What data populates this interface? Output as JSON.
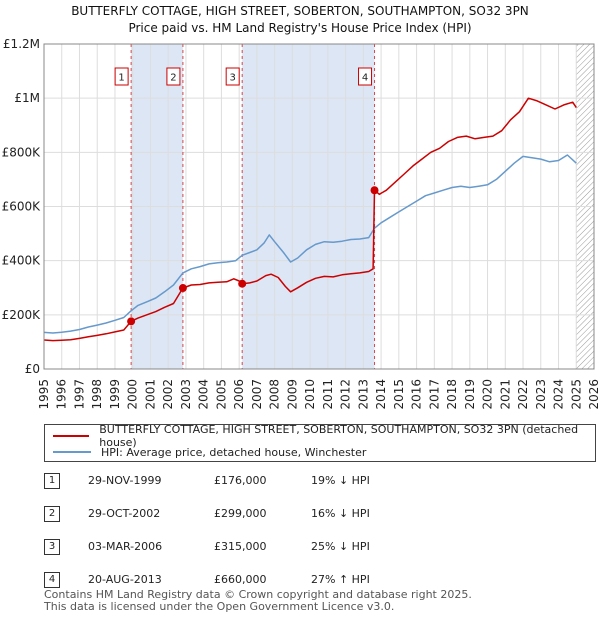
{
  "title": {
    "line1": "BUTTERFLY COTTAGE, HIGH STREET, SOBERTON, SOUTHAMPTON, SO32 3PN",
    "line2": "Price paid vs. HM Land Registry's House Price Index (HPI)"
  },
  "colors": {
    "property": "#cc0000",
    "hpi": "#6699cc",
    "band": "#dde6f5",
    "grid": "#dddddd",
    "hatch": "#999999"
  },
  "chart_data": {
    "type": "line",
    "title": "Price paid vs. HM Land Registry's House Price Index (HPI)",
    "xlabel": "",
    "ylabel": "",
    "xlim": [
      1995,
      2026
    ],
    "ylim": [
      0,
      1200000
    ],
    "x_ticks": [
      "1995",
      "1996",
      "1997",
      "1998",
      "1999",
      "2000",
      "2001",
      "2002",
      "2003",
      "2004",
      "2005",
      "2006",
      "2007",
      "2008",
      "2009",
      "2010",
      "2011",
      "2012",
      "2013",
      "2014",
      "2015",
      "2016",
      "2017",
      "2018",
      "2019",
      "2020",
      "2021",
      "2022",
      "2023",
      "2024",
      "2025",
      "2026"
    ],
    "y_ticks": [
      {
        "value": 0,
        "label": "£0"
      },
      {
        "value": 200000,
        "label": "£200K"
      },
      {
        "value": 400000,
        "label": "£400K"
      },
      {
        "value": 600000,
        "label": "£600K"
      },
      {
        "value": 800000,
        "label": "£800K"
      },
      {
        "value": 1000000,
        "label": "£1M"
      },
      {
        "value": 1200000,
        "label": "£1.2M"
      }
    ],
    "grid": true,
    "legend_position": "below",
    "projection_from": 2025.0,
    "shaded_bands": [
      [
        1999.91,
        2002.83
      ],
      [
        2006.17,
        2013.63
      ]
    ],
    "series": [
      {
        "name": "BUTTERFLY COTTAGE, HIGH STREET, SOBERTON, SOUTHAMPTON, SO32 3PN (detached house)",
        "color": "#cc0000",
        "points": [
          [
            1995.0,
            107000
          ],
          [
            1995.5,
            105000
          ],
          [
            1996.0,
            106000
          ],
          [
            1996.5,
            108000
          ],
          [
            1997.0,
            113000
          ],
          [
            1997.5,
            119000
          ],
          [
            1998.0,
            124000
          ],
          [
            1998.5,
            130000
          ],
          [
            1999.0,
            137000
          ],
          [
            1999.5,
            144000
          ],
          [
            1999.91,
            176000
          ],
          [
            2000.3,
            188000
          ],
          [
            2000.8,
            200000
          ],
          [
            2001.3,
            212000
          ],
          [
            2001.8,
            228000
          ],
          [
            2002.3,
            242000
          ],
          [
            2002.83,
            299000
          ],
          [
            2003.3,
            310000
          ],
          [
            2003.8,
            312000
          ],
          [
            2004.3,
            318000
          ],
          [
            2004.8,
            320000
          ],
          [
            2005.3,
            322000
          ],
          [
            2005.7,
            333000
          ],
          [
            2006.0,
            325000
          ],
          [
            2006.17,
            315000
          ],
          [
            2006.6,
            318000
          ],
          [
            2007.0,
            325000
          ],
          [
            2007.5,
            345000
          ],
          [
            2007.8,
            350000
          ],
          [
            2008.2,
            338000
          ],
          [
            2008.6,
            305000
          ],
          [
            2008.9,
            285000
          ],
          [
            2009.3,
            300000
          ],
          [
            2009.8,
            320000
          ],
          [
            2010.3,
            335000
          ],
          [
            2010.8,
            342000
          ],
          [
            2011.3,
            340000
          ],
          [
            2011.8,
            348000
          ],
          [
            2012.3,
            352000
          ],
          [
            2012.8,
            355000
          ],
          [
            2013.3,
            360000
          ],
          [
            2013.55,
            370000
          ],
          [
            2013.63,
            660000
          ],
          [
            2013.9,
            645000
          ],
          [
            2014.3,
            660000
          ],
          [
            2014.8,
            690000
          ],
          [
            2015.3,
            720000
          ],
          [
            2015.8,
            750000
          ],
          [
            2016.3,
            775000
          ],
          [
            2016.8,
            800000
          ],
          [
            2017.3,
            815000
          ],
          [
            2017.8,
            840000
          ],
          [
            2018.3,
            855000
          ],
          [
            2018.8,
            860000
          ],
          [
            2019.3,
            850000
          ],
          [
            2019.8,
            855000
          ],
          [
            2020.3,
            860000
          ],
          [
            2020.8,
            880000
          ],
          [
            2021.3,
            920000
          ],
          [
            2021.8,
            950000
          ],
          [
            2022.3,
            1000000
          ],
          [
            2022.8,
            990000
          ],
          [
            2023.3,
            975000
          ],
          [
            2023.8,
            960000
          ],
          [
            2024.3,
            975000
          ],
          [
            2024.8,
            985000
          ],
          [
            2025.0,
            965000
          ]
        ]
      },
      {
        "name": "HPI: Average price, detached house, Winchester",
        "color": "#6699cc",
        "points": [
          [
            1995.0,
            135000
          ],
          [
            1995.5,
            133000
          ],
          [
            1996.0,
            136000
          ],
          [
            1996.5,
            140000
          ],
          [
            1997.0,
            146000
          ],
          [
            1997.5,
            155000
          ],
          [
            1998.0,
            162000
          ],
          [
            1998.5,
            170000
          ],
          [
            1999.0,
            180000
          ],
          [
            1999.5,
            190000
          ],
          [
            1999.91,
            215000
          ],
          [
            2000.3,
            235000
          ],
          [
            2000.8,
            248000
          ],
          [
            2001.3,
            262000
          ],
          [
            2001.8,
            285000
          ],
          [
            2002.3,
            310000
          ],
          [
            2002.83,
            355000
          ],
          [
            2003.3,
            370000
          ],
          [
            2003.8,
            378000
          ],
          [
            2004.3,
            388000
          ],
          [
            2004.8,
            392000
          ],
          [
            2005.3,
            395000
          ],
          [
            2005.8,
            400000
          ],
          [
            2006.17,
            420000
          ],
          [
            2006.6,
            430000
          ],
          [
            2007.0,
            440000
          ],
          [
            2007.4,
            465000
          ],
          [
            2007.7,
            495000
          ],
          [
            2008.0,
            470000
          ],
          [
            2008.5,
            430000
          ],
          [
            2008.9,
            395000
          ],
          [
            2009.3,
            410000
          ],
          [
            2009.8,
            440000
          ],
          [
            2010.3,
            460000
          ],
          [
            2010.8,
            470000
          ],
          [
            2011.3,
            468000
          ],
          [
            2011.8,
            472000
          ],
          [
            2012.3,
            478000
          ],
          [
            2012.8,
            480000
          ],
          [
            2013.3,
            485000
          ],
          [
            2013.63,
            520000
          ],
          [
            2014.0,
            540000
          ],
          [
            2014.5,
            560000
          ],
          [
            2015.0,
            580000
          ],
          [
            2015.5,
            600000
          ],
          [
            2016.0,
            620000
          ],
          [
            2016.5,
            640000
          ],
          [
            2017.0,
            650000
          ],
          [
            2017.5,
            660000
          ],
          [
            2018.0,
            670000
          ],
          [
            2018.5,
            675000
          ],
          [
            2019.0,
            670000
          ],
          [
            2019.5,
            675000
          ],
          [
            2020.0,
            680000
          ],
          [
            2020.5,
            700000
          ],
          [
            2021.0,
            730000
          ],
          [
            2021.5,
            760000
          ],
          [
            2022.0,
            785000
          ],
          [
            2022.5,
            780000
          ],
          [
            2023.0,
            775000
          ],
          [
            2023.5,
            765000
          ],
          [
            2024.0,
            770000
          ],
          [
            2024.5,
            790000
          ],
          [
            2025.0,
            760000
          ]
        ]
      }
    ],
    "sale_markers": [
      {
        "label": "1",
        "x": 1999.91,
        "y": 176000
      },
      {
        "label": "2",
        "x": 2002.83,
        "y": 299000
      },
      {
        "label": "3",
        "x": 2006.17,
        "y": 315000
      },
      {
        "label": "4",
        "x": 2013.63,
        "y": 660000
      }
    ]
  },
  "legend": {
    "property_label": "BUTTERFLY COTTAGE, HIGH STREET, SOBERTON, SOUTHAMPTON, SO32 3PN (detached house)",
    "hpi_label": "HPI: Average price, detached house, Winchester"
  },
  "sales": [
    {
      "num": "1",
      "date": "29-NOV-1999",
      "price": "£176,000",
      "hpi": "19% ↓ HPI"
    },
    {
      "num": "2",
      "date": "29-OCT-2002",
      "price": "£299,000",
      "hpi": "16% ↓ HPI"
    },
    {
      "num": "3",
      "date": "03-MAR-2006",
      "price": "£315,000",
      "hpi": "25% ↓ HPI"
    },
    {
      "num": "4",
      "date": "20-AUG-2013",
      "price": "£660,000",
      "hpi": "27% ↑ HPI"
    }
  ],
  "footer": {
    "line1": "Contains HM Land Registry data © Crown copyright and database right 2025.",
    "line2": "This data is licensed under the Open Government Licence v3.0."
  }
}
